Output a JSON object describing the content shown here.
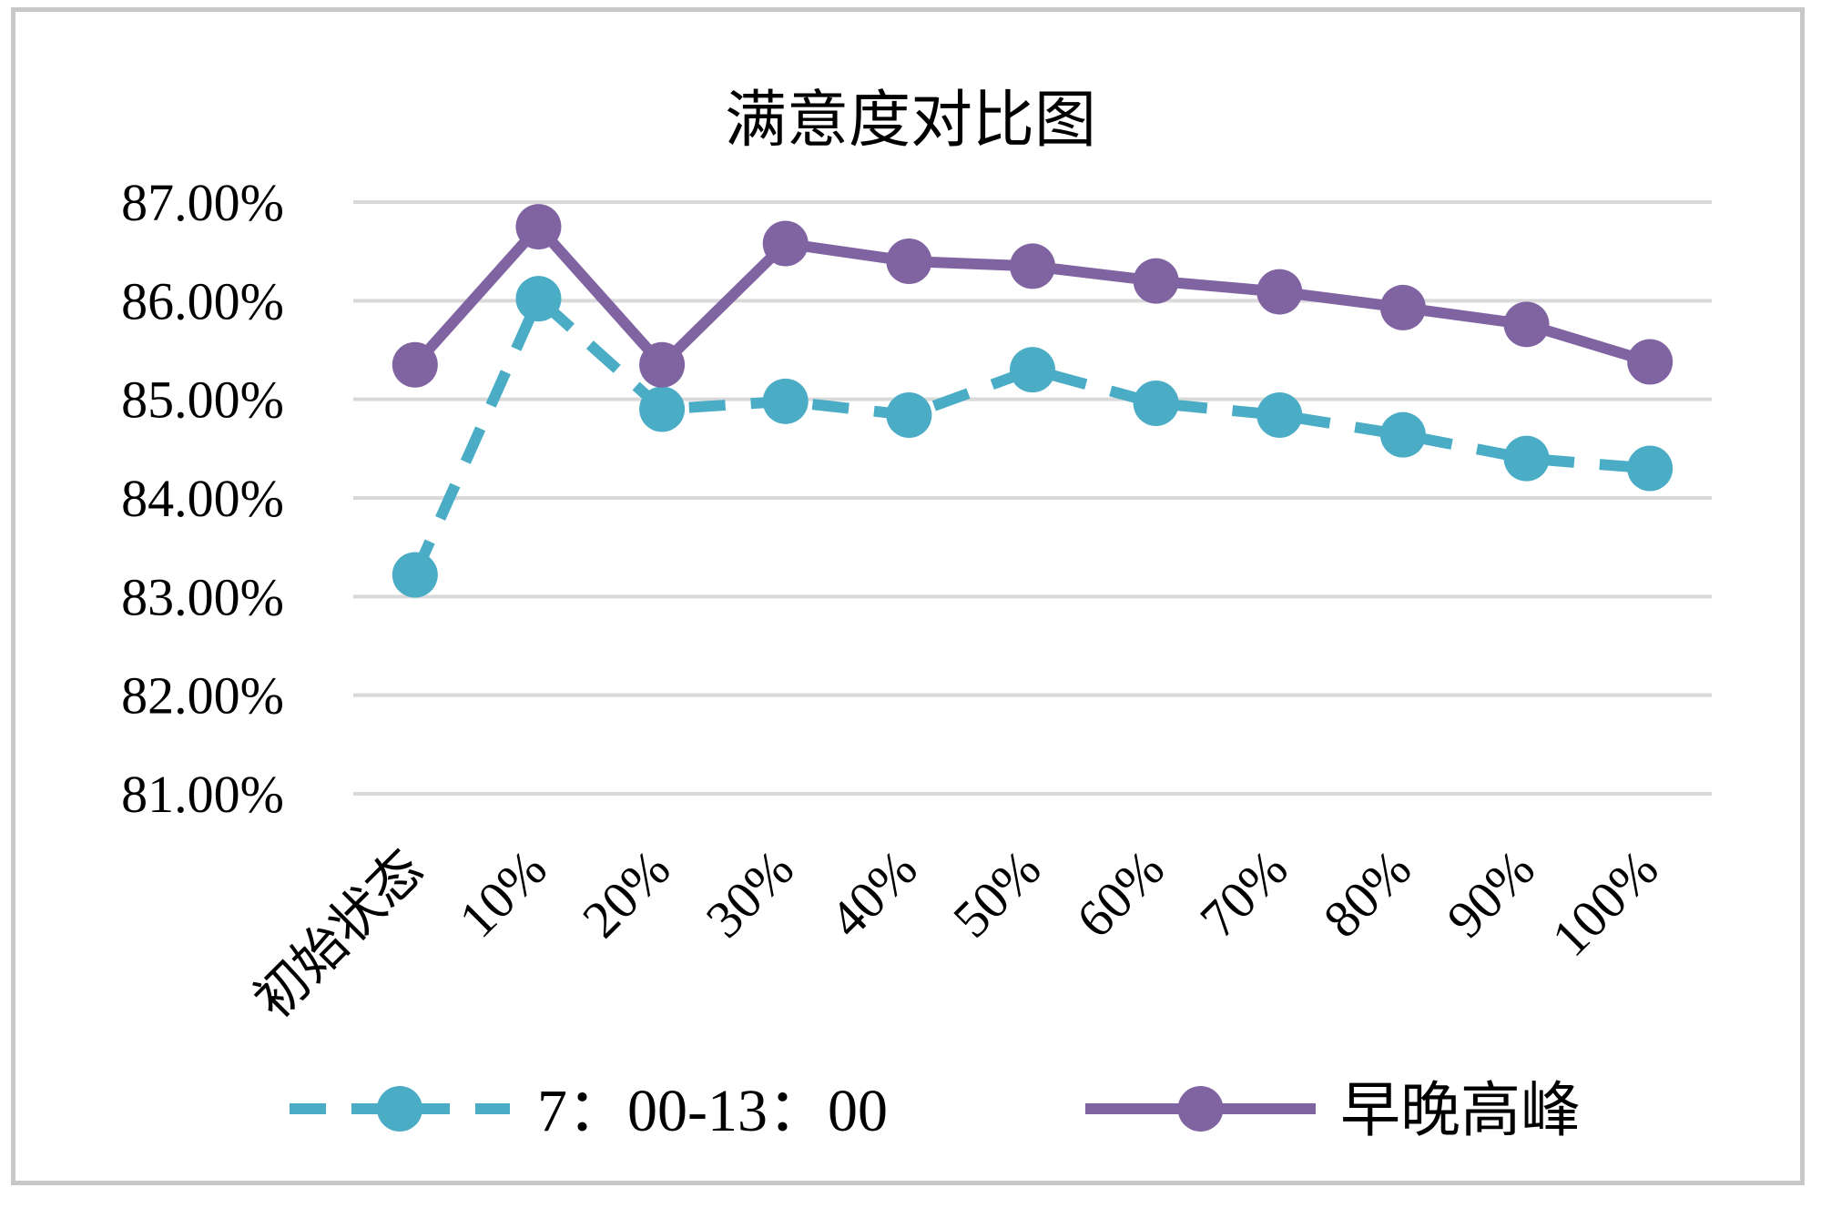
{
  "chart_data": {
    "type": "line",
    "title": "满意度对比图",
    "xlabel": "",
    "ylabel": "",
    "categories": [
      "初始状态",
      "10%",
      "20%",
      "30%",
      "40%",
      "50%",
      "60%",
      "70%",
      "80%",
      "90%",
      "100%"
    ],
    "yticks": [
      "81.00%",
      "82.00%",
      "83.00%",
      "84.00%",
      "85.00%",
      "86.00%",
      "87.00%"
    ],
    "ylim": [
      81,
      87
    ],
    "grid": true,
    "legend_position": "bottom",
    "series": [
      {
        "name": "7：00-13：00",
        "color": "#4bacc6",
        "line_style": "dashed",
        "values": [
          83.22,
          86.02,
          84.9,
          84.98,
          84.84,
          85.3,
          84.96,
          84.84,
          84.64,
          84.4,
          84.3
        ]
      },
      {
        "name": "早晚高峰",
        "color": "#8064a2",
        "line_style": "solid",
        "values": [
          85.35,
          86.75,
          85.35,
          86.58,
          86.4,
          86.35,
          86.2,
          86.09,
          85.93,
          85.76,
          85.38
        ]
      }
    ]
  }
}
